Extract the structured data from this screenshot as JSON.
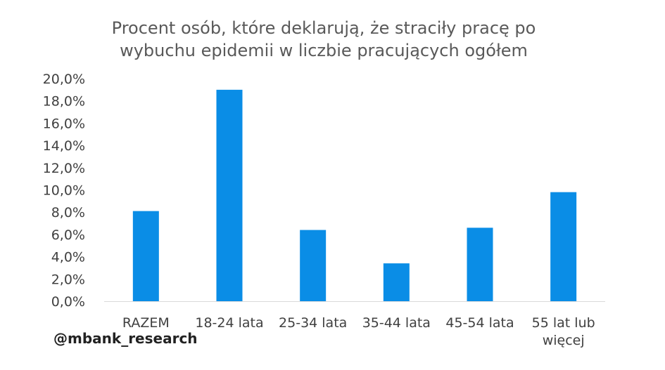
{
  "chart_data": {
    "type": "bar",
    "title": "Procent osób, które deklarują, że straciły pracę po wybuchu epidemii w liczbie pracujących ogółem",
    "title_lines": [
      "Procent osób, które deklarują, że straciły pracę po",
      "wybuchu epidemii w liczbie pracujących ogółem"
    ],
    "categories": [
      "RAZEM",
      "18-24 lata",
      "25-34 lata",
      "35-44 lata",
      "45-54 lata",
      "55 lat lub więcej"
    ],
    "category_lines": [
      [
        "RAZEM"
      ],
      [
        "18-24 lata"
      ],
      [
        "25-34 lata"
      ],
      [
        "35-44 lata"
      ],
      [
        "45-54 lata"
      ],
      [
        "55 lat lub",
        "więcej"
      ]
    ],
    "values": [
      8.1,
      19.0,
      6.4,
      3.4,
      6.6,
      9.8
    ],
    "unit": "%",
    "ylim": [
      0,
      20
    ],
    "yticks": [
      0,
      2,
      4,
      6,
      8,
      10,
      12,
      14,
      16,
      18,
      20
    ],
    "ytick_labels": [
      "0,0%",
      "2,0%",
      "4,0%",
      "6,0%",
      "8,0%",
      "10,0%",
      "12,0%",
      "14,0%",
      "16,0%",
      "18,0%",
      "20,0%"
    ],
    "xlabel": "",
    "ylabel": "",
    "grid": false,
    "legend": "none",
    "bar_color": "#0a8de6",
    "axis_color": "#d9d9d9"
  },
  "watermark": "@mbank_research"
}
